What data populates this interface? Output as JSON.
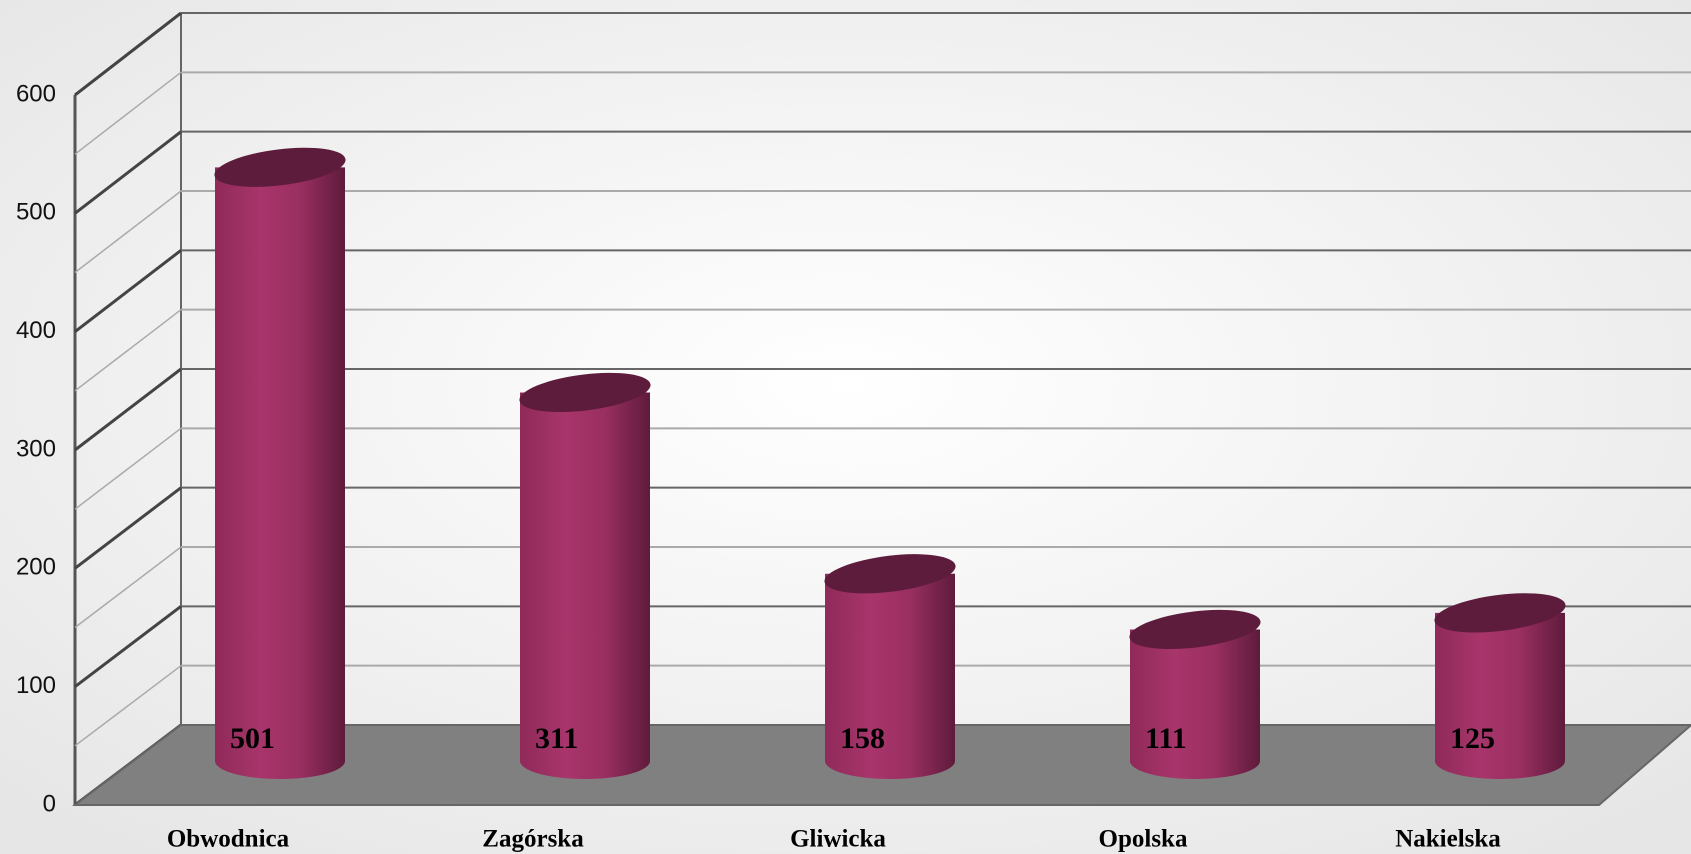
{
  "chart_data": {
    "type": "cylinder",
    "categories": [
      "Obwodnica",
      "Zagórska",
      "Gliwicka",
      "Opolska",
      "Nakielska"
    ],
    "values": [
      501,
      311,
      158,
      111,
      125
    ],
    "color": "#a83469",
    "ylim": [
      0,
      600
    ],
    "yticks": [
      0,
      100,
      200,
      300,
      400,
      500,
      600
    ],
    "grid": true
  }
}
